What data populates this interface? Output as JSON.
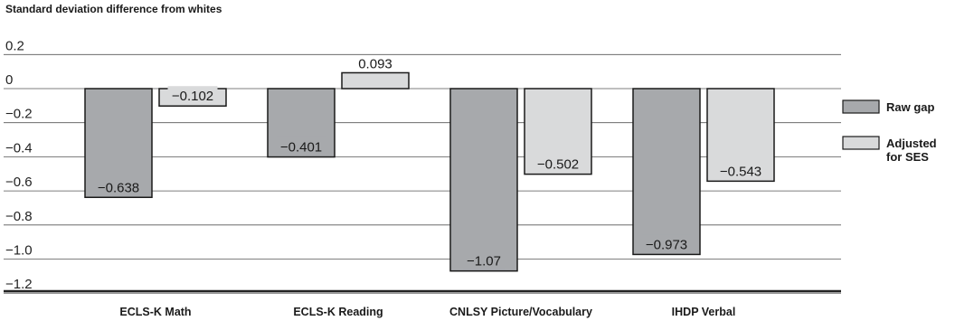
{
  "chart_data": {
    "type": "bar",
    "title": "Standard deviation difference from whites",
    "categories": [
      "ECLS-K Math",
      "ECLS-K Reading",
      "CNLSY Picture/Vocabulary",
      "IHDP Verbal"
    ],
    "series": [
      {
        "name": "Raw gap",
        "values": [
          -0.638,
          -0.401,
          -1.07,
          -0.973
        ],
        "labels": [
          "−0.638",
          "−0.401",
          "−1.07",
          "−0.973"
        ],
        "color": "#a7a9ac"
      },
      {
        "name": "Adjusted for SES",
        "legend_lines": [
          "Adjusted",
          "for SES"
        ],
        "values": [
          -0.102,
          0.093,
          -0.502,
          -0.543
        ],
        "labels": [
          "−0.102",
          "0.093",
          "−0.502",
          "−0.543"
        ],
        "color": "#d9dadb"
      }
    ],
    "yticks": [
      0.2,
      0,
      -0.2,
      -0.4,
      -0.6,
      -0.8,
      -1.0,
      -1.2
    ],
    "ytick_labels": [
      "0.2",
      "0",
      "−0.2",
      "−0.4",
      "−0.6",
      "−0.8",
      "−1.0",
      "−1.2"
    ],
    "ylim": [
      -1.2,
      0.2
    ],
    "grid": true,
    "legend_position": "right"
  }
}
